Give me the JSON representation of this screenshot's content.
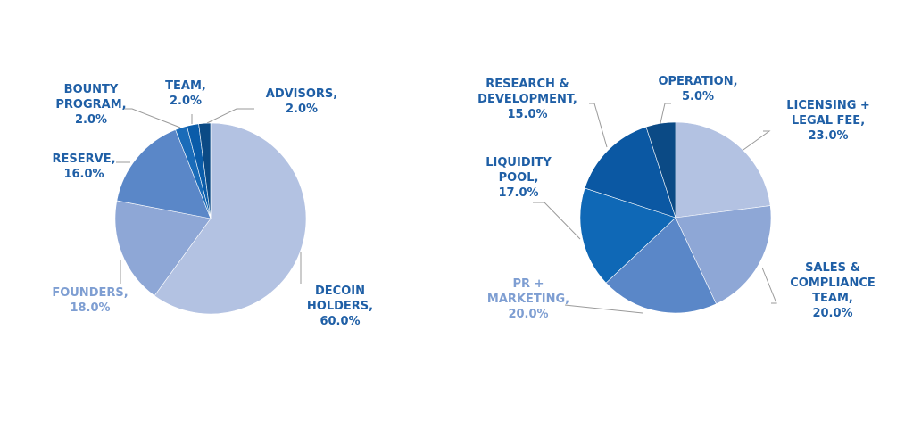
{
  "chart_data": [
    {
      "type": "pie",
      "title": "",
      "start": "top-clockwise",
      "slices": [
        {
          "label": "DECOIN HOLDERS",
          "value": 60.0,
          "text": [
            "DECOIN",
            "HOLDERS,",
            "60.0%"
          ],
          "color": "#b3c2e2",
          "label_color": "#1f5fa6"
        },
        {
          "label": "FOUNDERS",
          "value": 18.0,
          "text": [
            "FOUNDERS,",
            "18.0%"
          ],
          "color": "#8ea7d6",
          "label_color": "#7e9ed2"
        },
        {
          "label": "RESERVE",
          "value": 16.0,
          "text": [
            "RESERVE,",
            "16.0%"
          ],
          "color": "#5a87c8",
          "label_color": "#1f5fa6"
        },
        {
          "label": "BOUNTY PROGRAM",
          "value": 2.0,
          "text": [
            "BOUNTY",
            "PROGRAM,",
            "2.0%"
          ],
          "color": "#1a6cb9",
          "label_color": "#1f5fa6"
        },
        {
          "label": "TEAM",
          "value": 2.0,
          "text": [
            "TEAM,",
            "2.0%"
          ],
          "color": "#0a5ca9",
          "label_color": "#1f5fa6"
        },
        {
          "label": "ADVISORS",
          "value": 2.0,
          "text": [
            "ADVISORS,",
            "2.0%"
          ],
          "color": "#0b4a85",
          "label_color": "#1f5fa6"
        }
      ]
    },
    {
      "type": "pie",
      "title": "",
      "start": "top-clockwise",
      "slices": [
        {
          "label": "LICENSING + LEGAL FEE",
          "value": 23.0,
          "text": [
            "LICENSING +",
            "LEGAL FEE,",
            "23.0%"
          ],
          "color": "#b3c2e2",
          "label_color": "#1f5fa6"
        },
        {
          "label": "SALES & COMPLIANCE TEAM",
          "value": 20.0,
          "text": [
            "SALES &",
            "COMPLIANCE",
            "TEAM,",
            "20.0%"
          ],
          "color": "#8ea7d6",
          "label_color": "#1f5fa6"
        },
        {
          "label": "PR + MARKETING",
          "value": 20.0,
          "text": [
            "PR +",
            "MARKETING,",
            "20.0%"
          ],
          "color": "#5a87c8",
          "label_color": "#7e9ed2"
        },
        {
          "label": "LIQUIDITY POOL",
          "value": 17.0,
          "text": [
            "LIQUIDITY",
            "POOL,",
            "17.0%"
          ],
          "color": "#0f68b6",
          "label_color": "#1f5fa6"
        },
        {
          "label": "RESEARCH & DEVELOPMENT",
          "value": 15.0,
          "text": [
            "RESEARCH &",
            "DEVELOPMENT,",
            "15.0%"
          ],
          "color": "#0b58a3",
          "label_color": "#1f5fa6"
        },
        {
          "label": "OPERATION",
          "value": 5.0,
          "text": [
            "OPERATION,",
            "5.0%"
          ],
          "color": "#0b4a85",
          "label_color": "#1f5fa6"
        }
      ]
    }
  ]
}
